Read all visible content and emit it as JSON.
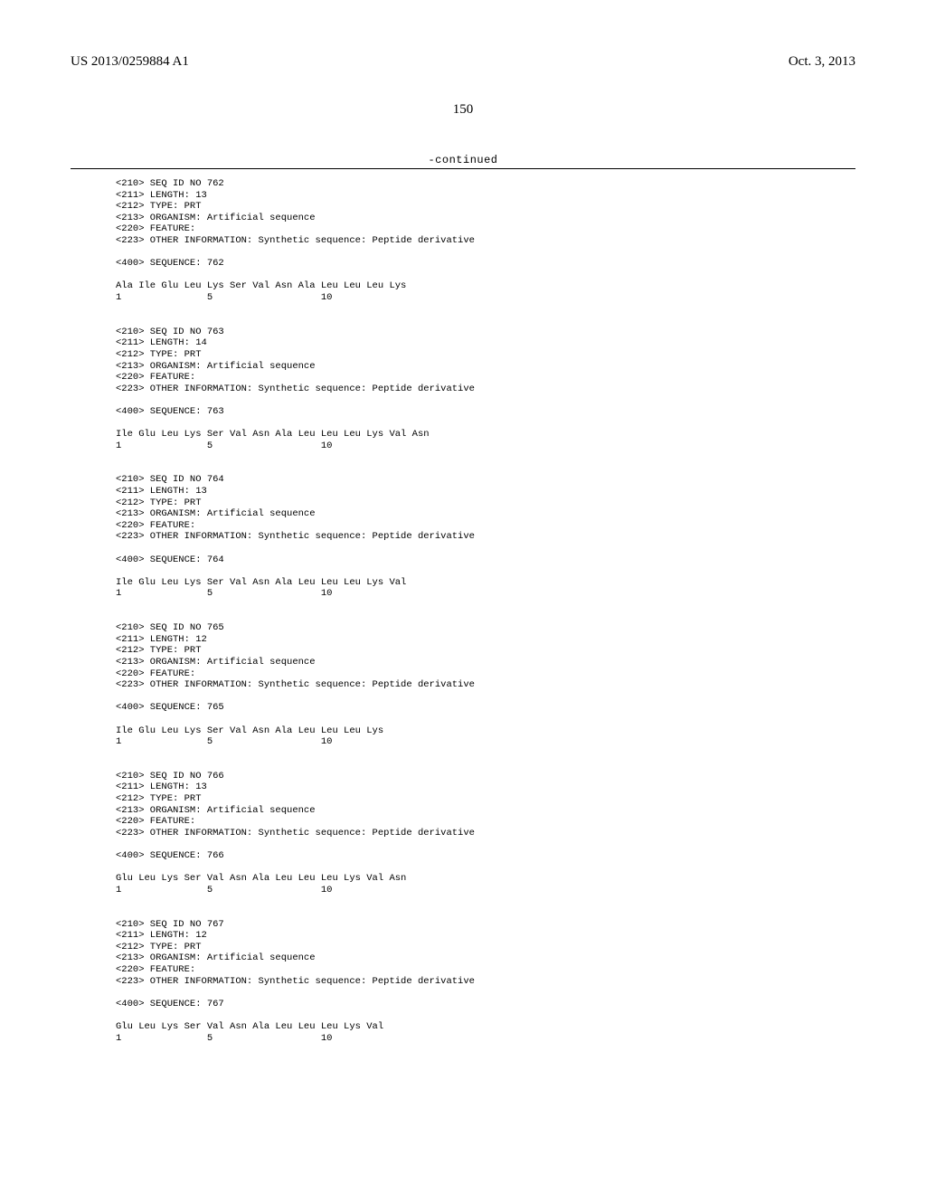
{
  "header": {
    "pub_number": "US 2013/0259884 A1",
    "pub_date": "Oct. 3, 2013",
    "page_number": "150",
    "continued_label": "-continued"
  },
  "entries": [
    {
      "seq_id": "<210> SEQ ID NO 762",
      "length": "<211> LENGTH: 13",
      "type": "<212> TYPE: PRT",
      "organism": "<213> ORGANISM: Artificial sequence",
      "feature": "<220> FEATURE:",
      "other": "<223> OTHER INFORMATION: Synthetic sequence: Peptide derivative",
      "seq_header": "<400> SEQUENCE: 762",
      "residues": "Ala Ile Glu Leu Lys Ser Val Asn Ala Leu Leu Leu Lys",
      "positions": "1               5                   10"
    },
    {
      "seq_id": "<210> SEQ ID NO 763",
      "length": "<211> LENGTH: 14",
      "type": "<212> TYPE: PRT",
      "organism": "<213> ORGANISM: Artificial sequence",
      "feature": "<220> FEATURE:",
      "other": "<223> OTHER INFORMATION: Synthetic sequence: Peptide derivative",
      "seq_header": "<400> SEQUENCE: 763",
      "residues": "Ile Glu Leu Lys Ser Val Asn Ala Leu Leu Leu Lys Val Asn",
      "positions": "1               5                   10"
    },
    {
      "seq_id": "<210> SEQ ID NO 764",
      "length": "<211> LENGTH: 13",
      "type": "<212> TYPE: PRT",
      "organism": "<213> ORGANISM: Artificial sequence",
      "feature": "<220> FEATURE:",
      "other": "<223> OTHER INFORMATION: Synthetic sequence: Peptide derivative",
      "seq_header": "<400> SEQUENCE: 764",
      "residues": "Ile Glu Leu Lys Ser Val Asn Ala Leu Leu Leu Lys Val",
      "positions": "1               5                   10"
    },
    {
      "seq_id": "<210> SEQ ID NO 765",
      "length": "<211> LENGTH: 12",
      "type": "<212> TYPE: PRT",
      "organism": "<213> ORGANISM: Artificial sequence",
      "feature": "<220> FEATURE:",
      "other": "<223> OTHER INFORMATION: Synthetic sequence: Peptide derivative",
      "seq_header": "<400> SEQUENCE: 765",
      "residues": "Ile Glu Leu Lys Ser Val Asn Ala Leu Leu Leu Lys",
      "positions": "1               5                   10"
    },
    {
      "seq_id": "<210> SEQ ID NO 766",
      "length": "<211> LENGTH: 13",
      "type": "<212> TYPE: PRT",
      "organism": "<213> ORGANISM: Artificial sequence",
      "feature": "<220> FEATURE:",
      "other": "<223> OTHER INFORMATION: Synthetic sequence: Peptide derivative",
      "seq_header": "<400> SEQUENCE: 766",
      "residues": "Glu Leu Lys Ser Val Asn Ala Leu Leu Leu Lys Val Asn",
      "positions": "1               5                   10"
    },
    {
      "seq_id": "<210> SEQ ID NO 767",
      "length": "<211> LENGTH: 12",
      "type": "<212> TYPE: PRT",
      "organism": "<213> ORGANISM: Artificial sequence",
      "feature": "<220> FEATURE:",
      "other": "<223> OTHER INFORMATION: Synthetic sequence: Peptide derivative",
      "seq_header": "<400> SEQUENCE: 767",
      "residues": "Glu Leu Lys Ser Val Asn Ala Leu Leu Leu Lys Val",
      "positions": "1               5                   10"
    }
  ]
}
